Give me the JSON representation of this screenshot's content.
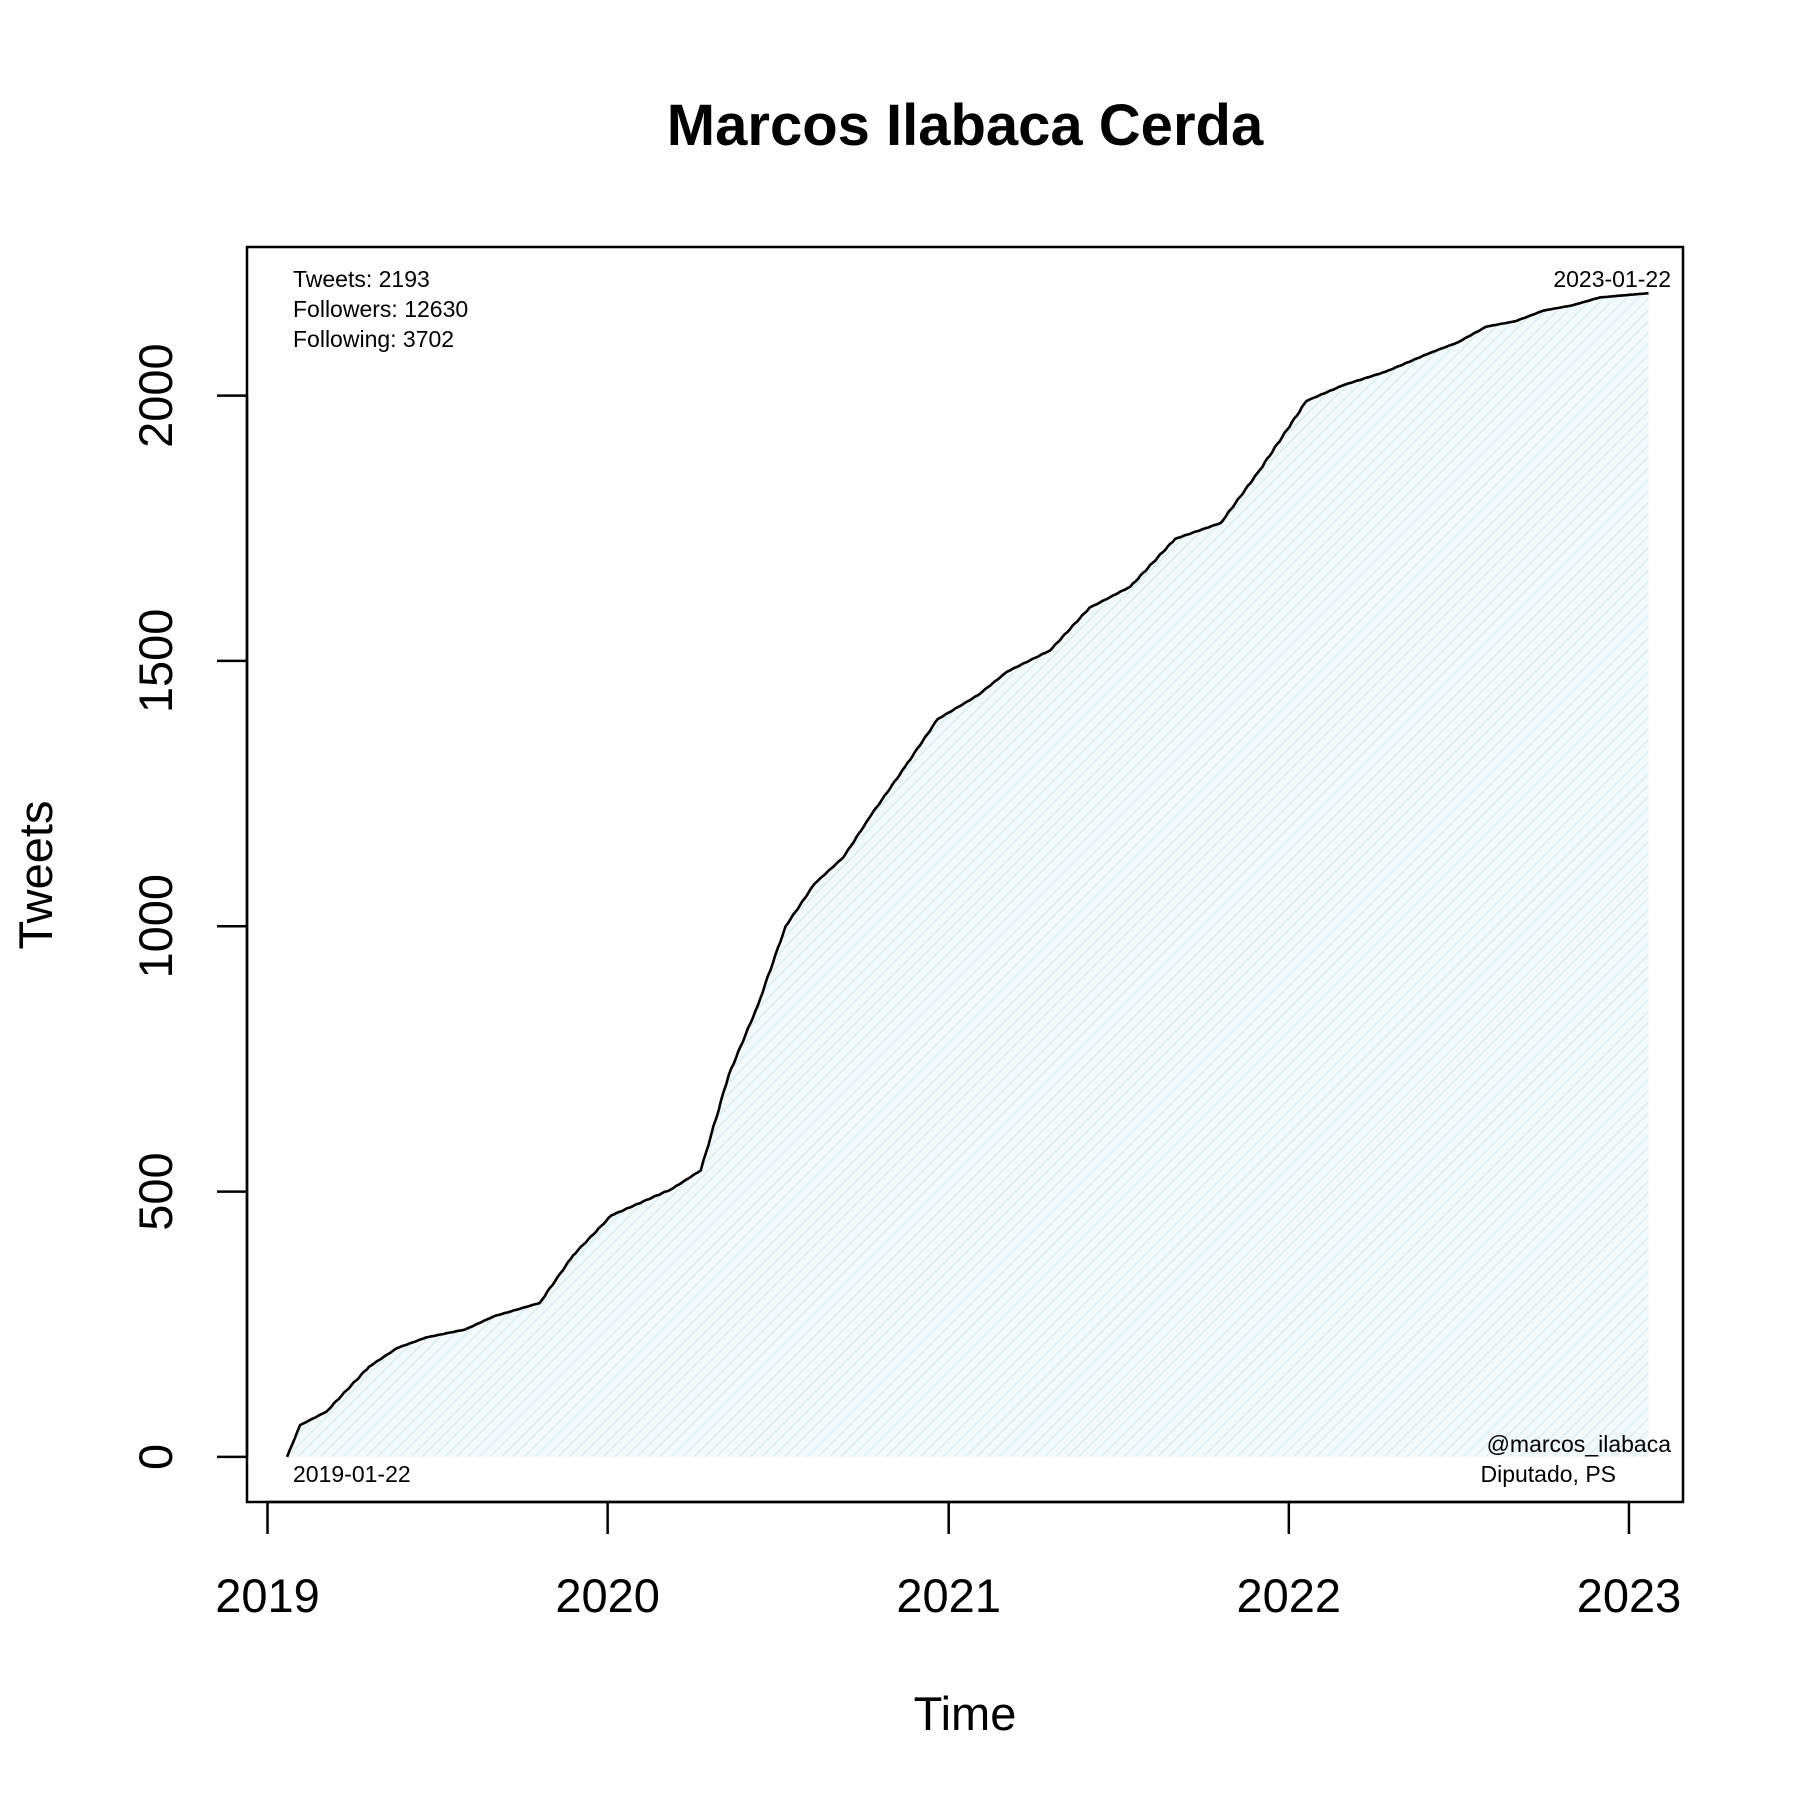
{
  "chart_data": {
    "type": "area",
    "title": "Marcos Ilabaca Cerda",
    "xlabel": "Time",
    "ylabel": "Tweets",
    "xlim": [
      "2018-12-10",
      "2023-02-28"
    ],
    "ylim": [
      -85,
      2280
    ],
    "x_ticks": [
      "2019",
      "2020",
      "2021",
      "2022",
      "2023"
    ],
    "y_ticks": [
      0,
      500,
      1000,
      1500,
      2000
    ],
    "stats": [
      "Tweets: 2193",
      "Followers: 12630",
      "Following: 3702"
    ],
    "start_label": "2019-01-22",
    "end_label": "2023-01-22",
    "handle": "@marcos_ilabaca",
    "role": "Diputado, PS",
    "fill_color": "#e8f4f8",
    "line_color": "#000000",
    "grid": false,
    "x": [
      "2019-01-22",
      "2019-02-05",
      "2019-03-05",
      "2019-04-20",
      "2019-05-20",
      "2019-06-20",
      "2019-08-01",
      "2019-09-01",
      "2019-10-20",
      "2019-11-25",
      "2020-01-05",
      "2020-03-10",
      "2020-04-10",
      "2020-05-10",
      "2020-06-10",
      "2020-07-10",
      "2020-08-10",
      "2020-09-10",
      "2020-10-10",
      "2020-11-15",
      "2020-12-20",
      "2021-02-01",
      "2021-03-05",
      "2021-04-20",
      "2021-06-01",
      "2021-07-15",
      "2021-09-01",
      "2021-10-20",
      "2021-12-01",
      "2022-01-20",
      "2022-03-01",
      "2022-04-15",
      "2022-06-01",
      "2022-07-01",
      "2022-08-01",
      "2022-09-01",
      "2022-10-01",
      "2022-11-01",
      "2022-12-01",
      "2023-01-22"
    ],
    "y": [
      0,
      60,
      85,
      170,
      205,
      225,
      240,
      265,
      290,
      380,
      455,
      505,
      540,
      720,
      850,
      1000,
      1080,
      1130,
      1210,
      1300,
      1390,
      1435,
      1480,
      1520,
      1600,
      1640,
      1730,
      1760,
      1860,
      1990,
      2020,
      2045,
      2080,
      2100,
      2130,
      2140,
      2160,
      2170,
      2185,
      2193
    ]
  }
}
